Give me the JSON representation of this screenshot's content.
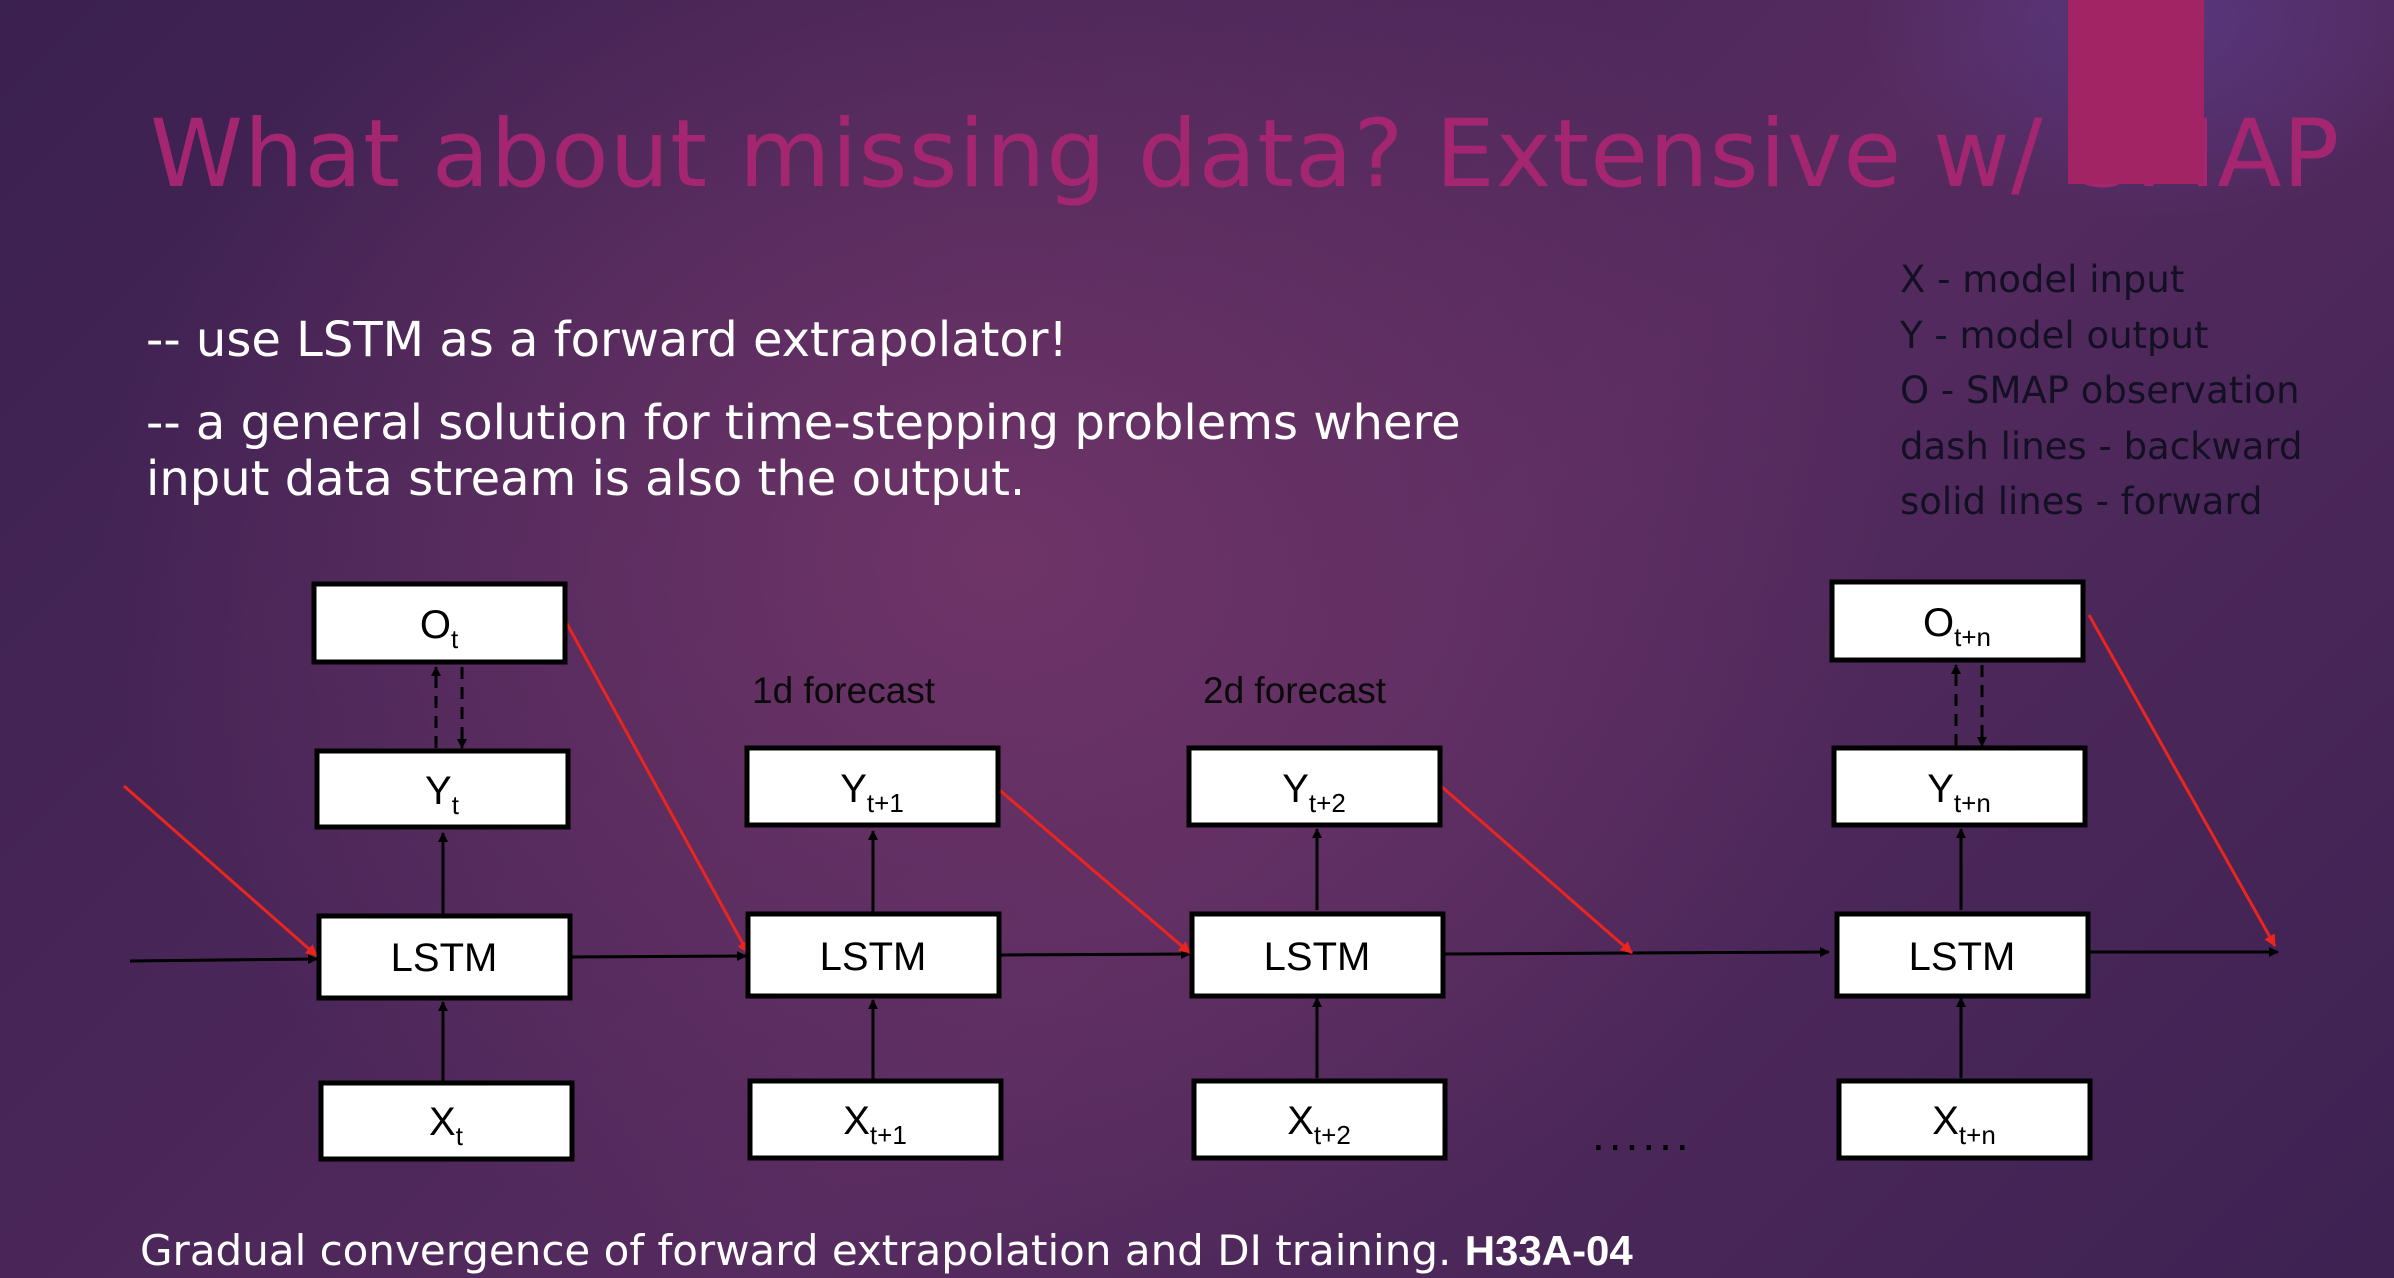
{
  "slide": {
    "title": "What about missing data? Extensive w/ SMAP",
    "bullets": [
      "-- use LSTM as a forward extrapolator!",
      "-- a general solution for time-stepping problems where",
      "input data stream is also the output."
    ],
    "legend": [
      "X - model input",
      "Y - model output",
      "O - SMAP observation",
      "dash lines - backward",
      "solid lines - forward"
    ],
    "footer": {
      "text": "Gradual convergence of forward extrapolation and DI training. ",
      "code": "H33A-04"
    },
    "colors": {
      "title": "#a42670",
      "accent": "#a22464",
      "forward_arrow": "#e8251e"
    }
  },
  "diagram": {
    "captions": {
      "f1": "1d forecast",
      "f2": "2d forecast",
      "dots": "......"
    },
    "lstm_label": "LSTM",
    "columns": [
      {
        "o": {
          "base": "O",
          "sub": "t"
        },
        "y": {
          "base": "Y",
          "sub": "t"
        },
        "x": {
          "base": "X",
          "sub": "t"
        }
      },
      {
        "y": {
          "base": "Y",
          "sub": "t+1"
        },
        "x": {
          "base": "X",
          "sub": "t+1"
        }
      },
      {
        "y": {
          "base": "Y",
          "sub": "t+2"
        },
        "x": {
          "base": "X",
          "sub": "t+2"
        }
      },
      {
        "o": {
          "base": "O",
          "sub": "t+n"
        },
        "y": {
          "base": "Y",
          "sub": "t+n"
        },
        "x": {
          "base": "X",
          "sub": "t+n"
        }
      }
    ]
  }
}
